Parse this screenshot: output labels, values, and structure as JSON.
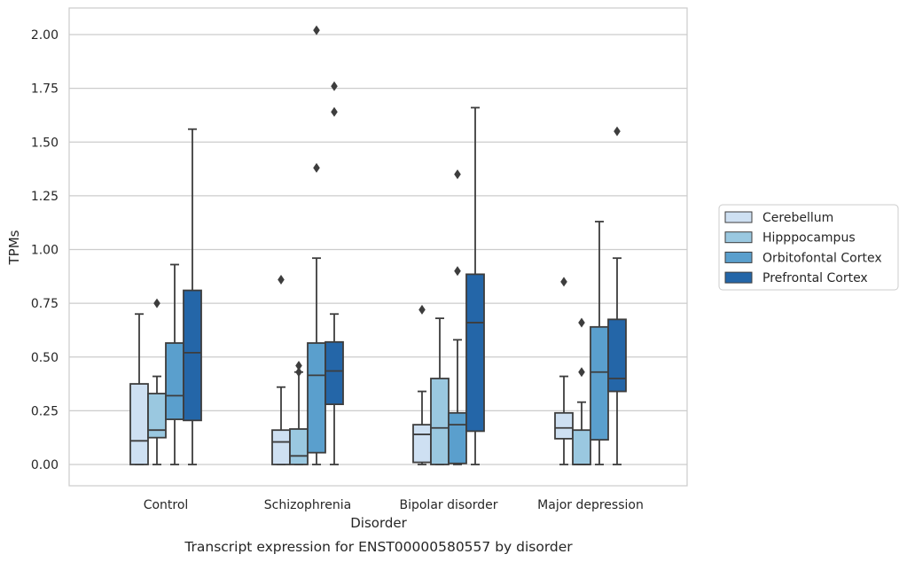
{
  "chart_data": {
    "type": "box",
    "caption": "Transcript expression for ENST00000580557 by disorder",
    "xlabel": "Disorder",
    "ylabel": "TPMs",
    "ylim": [
      -0.1,
      2.12
    ],
    "yticks": [
      "0.00",
      "0.25",
      "0.50",
      "0.75",
      "1.00",
      "1.25",
      "1.50",
      "1.75",
      "2.00"
    ],
    "ytick_values": [
      0,
      0.25,
      0.5,
      0.75,
      1.0,
      1.25,
      1.5,
      1.75,
      2.0
    ],
    "grid": "horizontal",
    "legend_position": "right",
    "categories": [
      "Control",
      "Schizophrenia",
      "Bipolar disorder",
      "Major depression"
    ],
    "series": [
      {
        "name": "Cerebellum",
        "color": "#cee0f2",
        "boxes": [
          {
            "whislo": 0.0,
            "q1": 0.0,
            "med": 0.11,
            "q3": 0.375,
            "whishi": 0.7,
            "fliers": []
          },
          {
            "whislo": 0.0,
            "q1": 0.0,
            "med": 0.105,
            "q3": 0.16,
            "whishi": 0.36,
            "fliers": [
              0.86
            ]
          },
          {
            "whislo": 0.0,
            "q1": 0.01,
            "med": 0.14,
            "q3": 0.185,
            "whishi": 0.34,
            "fliers": [
              0.72
            ]
          },
          {
            "whislo": 0.0,
            "q1": 0.12,
            "med": 0.17,
            "q3": 0.24,
            "whishi": 0.41,
            "fliers": [
              0.85
            ]
          }
        ]
      },
      {
        "name": "Hipppocampus",
        "color": "#9ac8e0",
        "boxes": [
          {
            "whislo": 0.0,
            "q1": 0.125,
            "med": 0.16,
            "q3": 0.33,
            "whishi": 0.41,
            "fliers": [
              0.75
            ]
          },
          {
            "whislo": 0.0,
            "q1": 0.0,
            "med": 0.04,
            "q3": 0.165,
            "whishi": 0.43,
            "fliers": [
              0.43,
              0.46
            ]
          },
          {
            "whislo": 0.0,
            "q1": 0.0,
            "med": 0.17,
            "q3": 0.4,
            "whishi": 0.68,
            "fliers": []
          },
          {
            "whislo": 0.0,
            "q1": 0.0,
            "med": 0.0,
            "q3": 0.16,
            "whishi": 0.29,
            "fliers": [
              0.43,
              0.66
            ]
          }
        ]
      },
      {
        "name": "Orbitofontal Cortex",
        "color": "#5a9fcd",
        "boxes": [
          {
            "whislo": 0.0,
            "q1": 0.21,
            "med": 0.32,
            "q3": 0.565,
            "whishi": 0.93,
            "fliers": []
          },
          {
            "whislo": 0.0,
            "q1": 0.055,
            "med": 0.415,
            "q3": 0.565,
            "whishi": 0.96,
            "fliers": [
              1.38,
              2.02
            ]
          },
          {
            "whislo": 0.0,
            "q1": 0.005,
            "med": 0.185,
            "q3": 0.24,
            "whishi": 0.58,
            "fliers": [
              0.9,
              1.35
            ]
          },
          {
            "whislo": 0.0,
            "q1": 0.115,
            "med": 0.43,
            "q3": 0.64,
            "whishi": 1.13,
            "fliers": []
          }
        ]
      },
      {
        "name": "Prefrontal Cortex",
        "color": "#2466a8",
        "boxes": [
          {
            "whislo": 0.0,
            "q1": 0.205,
            "med": 0.52,
            "q3": 0.81,
            "whishi": 1.56,
            "fliers": []
          },
          {
            "whislo": 0.0,
            "q1": 0.28,
            "med": 0.435,
            "q3": 0.57,
            "whishi": 0.7,
            "fliers": [
              1.64,
              1.76
            ]
          },
          {
            "whislo": 0.0,
            "q1": 0.155,
            "med": 0.66,
            "q3": 0.885,
            "whishi": 1.66,
            "fliers": []
          },
          {
            "whislo": 0.0,
            "q1": 0.34,
            "med": 0.4,
            "q3": 0.675,
            "whishi": 0.96,
            "fliers": [
              1.55
            ]
          }
        ]
      }
    ]
  }
}
